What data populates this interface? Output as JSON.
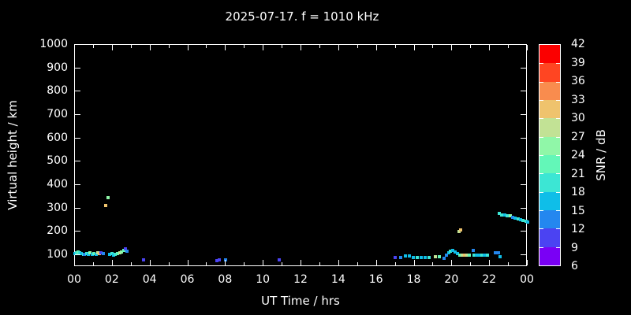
{
  "chart_data": {
    "type": "scatter",
    "title": "2025-07-17. f = 1010 kHz",
    "xlabel": "UT Time / hrs",
    "ylabel": "Virtual height / km",
    "xlim": [
      0,
      24
    ],
    "ylim": [
      50,
      1000
    ],
    "x_tick_hours": [
      0,
      2,
      4,
      6,
      8,
      10,
      12,
      14,
      16,
      18,
      20,
      22,
      24
    ],
    "x_tick_labels": [
      "00",
      "02",
      "04",
      "06",
      "08",
      "10",
      "12",
      "14",
      "16",
      "18",
      "20",
      "22",
      "00"
    ],
    "x_minor_tick_hours": [
      1,
      3,
      5,
      7,
      9,
      11,
      13,
      15,
      17,
      19,
      21,
      23
    ],
    "y_ticks": [
      100,
      200,
      300,
      400,
      500,
      600,
      700,
      800,
      900,
      1000
    ],
    "grid": false,
    "background": "#000000",
    "frame_color": "#ffffff",
    "text_color": "#ffffff",
    "colorbar": {
      "label": "SNR / dB",
      "min": 6,
      "max": 42,
      "step": 3,
      "tick_labels": [
        6,
        9,
        12,
        15,
        18,
        21,
        24,
        27,
        30,
        33,
        36,
        39,
        42
      ],
      "colors": [
        "#7a00f5",
        "#4b43f2",
        "#2487ef",
        "#0fbee8",
        "#3ce6d4",
        "#63f7b8",
        "#90f7a8",
        "#c2e295",
        "#efc36d",
        "#f98c4e",
        "#ff4522",
        "#fb0000"
      ],
      "position": "right"
    },
    "point_units": [
      "UT hour",
      "virtual height km",
      "SNR dB"
    ],
    "points": [
      [
        0.02,
        106,
        16.5
      ],
      [
        0.1,
        111,
        19.5
      ],
      [
        0.18,
        115,
        22.5
      ],
      [
        0.27,
        111,
        19.5
      ],
      [
        0.35,
        106,
        16.5
      ],
      [
        0.44,
        103,
        19.5
      ],
      [
        0.52,
        103,
        13.5
      ],
      [
        0.61,
        106,
        19.5
      ],
      [
        0.7,
        103,
        16.5
      ],
      [
        0.79,
        109,
        25.5
      ],
      [
        0.9,
        103,
        16.5
      ],
      [
        1.0,
        106,
        22.5
      ],
      [
        1.12,
        103,
        16.5
      ],
      [
        1.21,
        109,
        28.5
      ],
      [
        1.31,
        106,
        31.5
      ],
      [
        1.4,
        111,
        10.5
      ],
      [
        1.5,
        106,
        13.5
      ],
      [
        1.62,
        312,
        31.5
      ],
      [
        1.74,
        345,
        25.5
      ],
      [
        1.84,
        103,
        16.5
      ],
      [
        1.95,
        106,
        19.5
      ],
      [
        2.05,
        100,
        16.5
      ],
      [
        2.15,
        103,
        19.5
      ],
      [
        2.26,
        106,
        22.5
      ],
      [
        2.37,
        110,
        28.5
      ],
      [
        2.48,
        114,
        25.5
      ],
      [
        2.59,
        120,
        22.5
      ],
      [
        2.67,
        127,
        10.5
      ],
      [
        2.76,
        117,
        13.5
      ],
      [
        3.62,
        82,
        10.5
      ],
      [
        7.53,
        78,
        10.5
      ],
      [
        7.64,
        82,
        10.5
      ],
      [
        7.99,
        82,
        13.5
      ],
      [
        10.81,
        80,
        10.5
      ],
      [
        16.97,
        92,
        10.5
      ],
      [
        17.25,
        92,
        13.5
      ],
      [
        17.53,
        98,
        16.5
      ],
      [
        17.74,
        96,
        16.5
      ],
      [
        17.95,
        91,
        16.5
      ],
      [
        18.16,
        91,
        19.5
      ],
      [
        18.37,
        91,
        16.5
      ],
      [
        18.58,
        91,
        16.5
      ],
      [
        18.78,
        91,
        19.5
      ],
      [
        19.09,
        95,
        28.5
      ],
      [
        19.3,
        95,
        22.5
      ],
      [
        19.55,
        88,
        13.5
      ],
      [
        19.69,
        101,
        13.5
      ],
      [
        19.8,
        109,
        16.5
      ],
      [
        19.92,
        117,
        19.5
      ],
      [
        20.04,
        120,
        16.5
      ],
      [
        20.16,
        113,
        16.5
      ],
      [
        20.27,
        106,
        16.5
      ],
      [
        20.39,
        101,
        22.5
      ],
      [
        20.53,
        101,
        28.5
      ],
      [
        20.67,
        102,
        31.5
      ],
      [
        20.78,
        101,
        28.5
      ],
      [
        20.9,
        101,
        22.5
      ],
      [
        21.1,
        120,
        13.5
      ],
      [
        21.15,
        99,
        19.5
      ],
      [
        21.29,
        101,
        16.5
      ],
      [
        21.43,
        99,
        16.5
      ],
      [
        21.57,
        101,
        19.5
      ],
      [
        21.71,
        99,
        16.5
      ],
      [
        21.85,
        99,
        19.5
      ],
      [
        22.29,
        112,
        13.5
      ],
      [
        22.47,
        112,
        13.5
      ],
      [
        22.55,
        95,
        16.5
      ],
      [
        20.36,
        202,
        28.5
      ],
      [
        20.46,
        210,
        31.5
      ],
      [
        22.5,
        278,
        19.5
      ],
      [
        22.64,
        274,
        19.5
      ],
      [
        22.78,
        271,
        16.5
      ],
      [
        22.92,
        268,
        19.5
      ],
      [
        23.06,
        268,
        25.5
      ],
      [
        23.2,
        262,
        13.5
      ],
      [
        23.34,
        258,
        16.5
      ],
      [
        23.48,
        254,
        19.5
      ],
      [
        23.62,
        251,
        16.5
      ],
      [
        23.76,
        248,
        19.5
      ],
      [
        23.9,
        244,
        19.5
      ],
      [
        23.99,
        241,
        16.5
      ]
    ]
  }
}
